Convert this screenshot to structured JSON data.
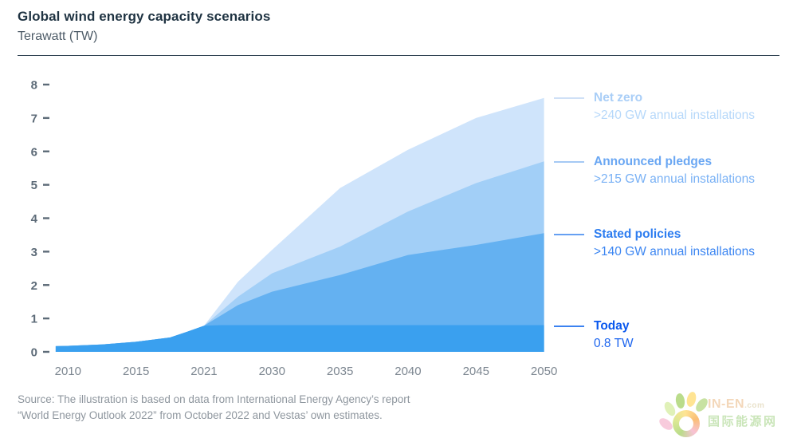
{
  "header": {
    "title": "Global wind energy capacity scenarios",
    "subtitle": "Terawatt (TW)"
  },
  "chart_data": {
    "type": "area",
    "title": "Global wind energy capacity scenarios",
    "ylabel": "Terawatt (TW)",
    "x_categories": [
      "2010",
      "2015",
      "2021",
      "2030",
      "2035",
      "2040",
      "2045",
      "2050"
    ],
    "y_ticks": [
      0,
      1,
      2,
      3,
      4,
      5,
      6,
      7,
      8
    ],
    "ylim": [
      0,
      8
    ],
    "grid": false,
    "legend_position": "right",
    "note": "x values below are in category-index units: 0=2010, 1=2015, 2=2021, 3=2030, 4=2035, 5=2040, 6=2045, 7=2050; y values in TW",
    "series": [
      {
        "name": "Net zero",
        "color": "#cfe4fb",
        "points": [
          [
            -0.18,
            0.17
          ],
          [
            0,
            0.18
          ],
          [
            0.5,
            0.22
          ],
          [
            1,
            0.3
          ],
          [
            1.5,
            0.43
          ],
          [
            1.75,
            0.6
          ],
          [
            2,
            0.78
          ],
          [
            2.5,
            2.1
          ],
          [
            3,
            3.05
          ],
          [
            4,
            4.9
          ],
          [
            5,
            6.05
          ],
          [
            6,
            7.0
          ],
          [
            7,
            7.6
          ]
        ]
      },
      {
        "name": "Announced pledges",
        "color": "#a2cff7",
        "points": [
          [
            -0.18,
            0.17
          ],
          [
            0,
            0.18
          ],
          [
            0.5,
            0.22
          ],
          [
            1,
            0.3
          ],
          [
            1.5,
            0.43
          ],
          [
            1.75,
            0.6
          ],
          [
            2,
            0.78
          ],
          [
            2.5,
            1.65
          ],
          [
            3,
            2.35
          ],
          [
            4,
            3.15
          ],
          [
            5,
            4.2
          ],
          [
            6,
            5.05
          ],
          [
            7,
            5.7
          ]
        ]
      },
      {
        "name": "Stated policies",
        "color": "#64b1f1",
        "points": [
          [
            -0.18,
            0.17
          ],
          [
            0,
            0.18
          ],
          [
            0.5,
            0.22
          ],
          [
            1,
            0.3
          ],
          [
            1.5,
            0.43
          ],
          [
            1.75,
            0.6
          ],
          [
            2,
            0.78
          ],
          [
            2.5,
            1.4
          ],
          [
            3,
            1.8
          ],
          [
            4,
            2.3
          ],
          [
            5,
            2.9
          ],
          [
            6,
            3.2
          ],
          [
            7,
            3.55
          ]
        ]
      },
      {
        "name": "Today",
        "color": "#3aa0ef",
        "points": [
          [
            -0.18,
            0.17
          ],
          [
            0,
            0.18
          ],
          [
            0.5,
            0.22
          ],
          [
            1,
            0.3
          ],
          [
            1.5,
            0.43
          ],
          [
            1.75,
            0.6
          ],
          [
            2,
            0.78
          ],
          [
            2.25,
            0.8
          ],
          [
            7,
            0.8
          ]
        ]
      }
    ]
  },
  "legend": {
    "items": [
      {
        "label": "Net zero",
        "sublabel": ">240 GW annual installations",
        "label_color": "#a9cef7",
        "sub_color": "#b6d8fa",
        "dash_color": "#cfe0f6"
      },
      {
        "label": "Announced pledges",
        "sublabel": ">215 GW annual installations",
        "label_color": "#6aa7f3",
        "sub_color": "#79b1f5",
        "dash_color": "#a5c9f4"
      },
      {
        "label": "Stated policies",
        "sublabel": ">140 GW annual installations",
        "label_color": "#2d7df0",
        "sub_color": "#3c86f2",
        "dash_color": "#66a0f2"
      },
      {
        "label": "Today",
        "sublabel": "0.8 TW",
        "label_color": "#0a58ee",
        "sub_color": "#1e66ef",
        "dash_color": "#3b82f0"
      }
    ]
  },
  "source": {
    "line1": "Source: The illustration is based on data from International Energy Agency’s report",
    "line2": "“World Energy Outlook 2022” from October 2022 and Vestas’ own estimates."
  },
  "watermark": {
    "brand": "IN-EN",
    "suffix": ".com",
    "name_cn": "国际能源网"
  }
}
